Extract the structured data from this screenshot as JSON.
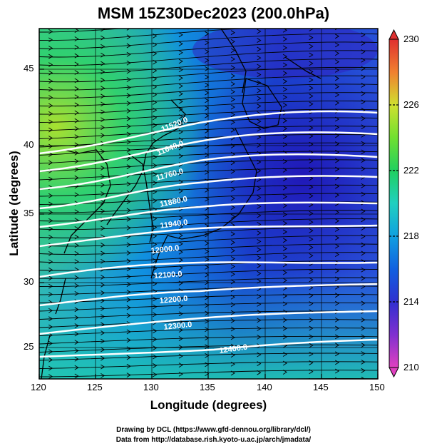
{
  "title": "MSM 15Z30Dec2023 (200.0hPa)",
  "x_axis": {
    "label": "Longitude (degrees)",
    "ticks": [
      "120",
      "125",
      "130",
      "135",
      "140",
      "145",
      "150"
    ],
    "range": [
      120,
      150
    ]
  },
  "y_axis": {
    "label": "Latitude  (degrees)",
    "ticks": [
      "25",
      "30",
      "35",
      "40",
      "45"
    ],
    "range": [
      22.4,
      47.6
    ]
  },
  "colorbar": {
    "ticks": [
      "230",
      "226",
      "222",
      "218",
      "214",
      "210"
    ],
    "range": [
      210,
      230
    ],
    "colors": [
      "#e040c0",
      "#8030d0",
      "#3030d0",
      "#1060e0",
      "#10a0e0",
      "#20d0c0",
      "#20d060",
      "#70e030",
      "#d0e030",
      "#f08030",
      "#e03030"
    ]
  },
  "contours": [
    {
      "label": "11520.0"
    },
    {
      "label": "11640.0"
    },
    {
      "label": "11760.0"
    },
    {
      "label": "11880.0"
    },
    {
      "label": "11940.0"
    },
    {
      "label": "12000.0"
    },
    {
      "label": "12100.0"
    },
    {
      "label": "12200.0"
    },
    {
      "label": "12300.0"
    },
    {
      "label": "12400.0"
    }
  ],
  "credits": {
    "line1": "Drawing by DCL (https://www.gfd-dennou.org/library/dcl/)",
    "line2": "Data from http://database.rish.kyoto-u.ac.jp/arch/jmadata/"
  }
}
